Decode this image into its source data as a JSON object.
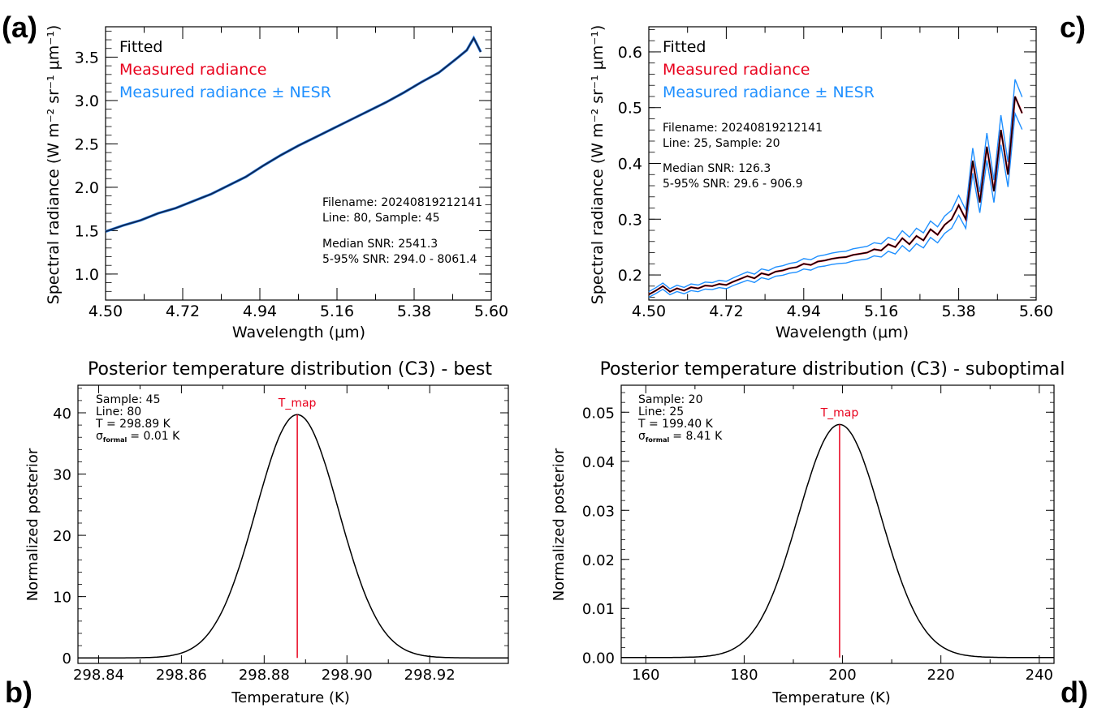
{
  "colors": {
    "fitted": "#000000",
    "measured": "#e8001c",
    "nesr": "#1e8fff",
    "tmap": "#e8001c",
    "axis": "#000000"
  },
  "chart_data": [
    {
      "panel": "(a)",
      "type": "line",
      "title": "",
      "xlabel": "Wavelength (μm)",
      "ylabel": "Spectral radiance (W m⁻² sr⁻¹ μm⁻¹)",
      "xlim": [
        4.5,
        5.6
      ],
      "ylim": [
        0.7,
        3.85
      ],
      "xticks": [
        4.5,
        4.72,
        4.94,
        5.16,
        5.38,
        5.6
      ],
      "xtick_labels": [
        "4.50",
        "4.72",
        "4.94",
        "5.16",
        "5.38",
        "5.60"
      ],
      "yticks": [
        1.0,
        1.5,
        2.0,
        2.5,
        3.0,
        3.5
      ],
      "ytick_labels": [
        "1.0",
        "1.5",
        "2.0",
        "2.5",
        "3.0",
        "3.5"
      ],
      "legend": [
        "Fitted",
        "Measured radiance",
        "Measured radiance ± NESR"
      ],
      "legend_position": "top-left",
      "annotation": {
        "filename": "Filename: 20240819212141",
        "line_sample": "Line:  80, Sample:  45",
        "median_snr": "Median SNR: 2541.3",
        "range_snr": "5-95% SNR:   294.0 -  8061.4"
      },
      "series": [
        {
          "name": "Fitted",
          "x": [
            4.5,
            4.55,
            4.6,
            4.65,
            4.7,
            4.75,
            4.8,
            4.85,
            4.9,
            4.95,
            5.0,
            5.05,
            5.1,
            5.15,
            5.2,
            5.25,
            5.3,
            5.35,
            5.4,
            5.45,
            5.5,
            5.53,
            5.55,
            5.57
          ],
          "y": [
            1.49,
            1.56,
            1.62,
            1.7,
            1.76,
            1.84,
            1.92,
            2.02,
            2.12,
            2.25,
            2.37,
            2.48,
            2.58,
            2.68,
            2.78,
            2.88,
            2.98,
            3.09,
            3.21,
            3.32,
            3.48,
            3.58,
            3.72,
            3.56
          ]
        }
      ]
    },
    {
      "panel": "c)",
      "type": "line",
      "title": "",
      "xlabel": "Wavelength (μm)",
      "ylabel": "Spectral radiance (W m⁻² sr⁻¹ μm⁻¹)",
      "xlim": [
        4.5,
        5.6
      ],
      "ylim": [
        0.155,
        0.645
      ],
      "xticks": [
        4.5,
        4.72,
        4.94,
        5.16,
        5.38,
        5.6
      ],
      "xtick_labels": [
        "4.50",
        "4.72",
        "4.94",
        "5.16",
        "5.38",
        "5.60"
      ],
      "yticks": [
        0.2,
        0.3,
        0.4,
        0.5,
        0.6
      ],
      "ytick_labels": [
        "0.2",
        "0.3",
        "0.4",
        "0.5",
        "0.6"
      ],
      "legend": [
        "Fitted",
        "Measured radiance",
        "Measured radiance ± NESR"
      ],
      "legend_position": "top-left",
      "annotation": {
        "filename": "Filename: 20240819212141",
        "line_sample": "Line:  25, Sample:  20",
        "median_snr": "Median SNR:  126.3",
        "range_snr": "5-95% SNR:   29.6 -   906.9"
      },
      "series": [
        {
          "name": "Fitted",
          "x": [
            4.5,
            4.52,
            4.54,
            4.56,
            4.58,
            4.6,
            4.62,
            4.64,
            4.66,
            4.68,
            4.7,
            4.72,
            4.74,
            4.76,
            4.78,
            4.8,
            4.82,
            4.84,
            4.86,
            4.88,
            4.9,
            4.92,
            4.94,
            4.96,
            4.98,
            5.0,
            5.02,
            5.04,
            5.06,
            5.08,
            5.1,
            5.12,
            5.14,
            5.16,
            5.18,
            5.2,
            5.22,
            5.24,
            5.26,
            5.28,
            5.3,
            5.32,
            5.34,
            5.36,
            5.38,
            5.4,
            5.42,
            5.44,
            5.46,
            5.48,
            5.5,
            5.52,
            5.54,
            5.56
          ],
          "y": [
            0.165,
            0.172,
            0.18,
            0.17,
            0.176,
            0.172,
            0.178,
            0.176,
            0.181,
            0.18,
            0.184,
            0.182,
            0.188,
            0.193,
            0.198,
            0.194,
            0.203,
            0.2,
            0.206,
            0.208,
            0.212,
            0.214,
            0.22,
            0.218,
            0.224,
            0.226,
            0.229,
            0.231,
            0.232,
            0.236,
            0.238,
            0.24,
            0.246,
            0.244,
            0.255,
            0.25,
            0.266,
            0.255,
            0.27,
            0.262,
            0.282,
            0.272,
            0.29,
            0.3,
            0.325,
            0.3,
            0.405,
            0.33,
            0.43,
            0.35,
            0.46,
            0.38,
            0.52,
            0.49
          ]
        }
      ]
    },
    {
      "panel": "b)",
      "type": "line",
      "title": "Posterior temperature distribution (C3) - best",
      "xlabel": "Temperature (K)",
      "ylabel": "Normalized posterior",
      "xlim": [
        298.835,
        298.939
      ],
      "ylim": [
        -0.9,
        44.5
      ],
      "xticks": [
        298.84,
        298.86,
        298.88,
        298.9,
        298.92
      ],
      "xtick_labels": [
        "298.84",
        "298.86",
        "298.88",
        "298.90",
        "298.92"
      ],
      "yticks": [
        0,
        10,
        20,
        30,
        40
      ],
      "ytick_labels": [
        "0",
        "10",
        "20",
        "30",
        "40"
      ],
      "marker_label": "T_map",
      "marker_x": 298.888,
      "gaussian": {
        "mean": 298.888,
        "sigma": 0.01,
        "peak": 39.7
      },
      "annotation": {
        "sample": "Sample: 45",
        "line": "Line: 80",
        "temperature": "T = 298.89 K",
        "sigma_symbol": "σ",
        "sigma_sub": "formal",
        "sigma_value": "=   0.01 K"
      }
    },
    {
      "panel": "d)",
      "type": "line",
      "title": "Posterior temperature distribution (C3) - suboptimal",
      "xlabel": "Temperature (K)",
      "ylabel": "Normalized posterior",
      "xlim": [
        155,
        243
      ],
      "ylim": [
        -0.0012,
        0.0555
      ],
      "xticks": [
        160,
        180,
        200,
        220,
        240
      ],
      "xtick_labels": [
        "160",
        "180",
        "200",
        "220",
        "240"
      ],
      "yticks": [
        0.0,
        0.01,
        0.02,
        0.03,
        0.04,
        0.05
      ],
      "ytick_labels": [
        "0.00",
        "0.01",
        "0.02",
        "0.03",
        "0.04",
        "0.05"
      ],
      "marker_label": "T_map",
      "marker_x": 199.4,
      "gaussian": {
        "mean": 199.4,
        "sigma": 8.41,
        "peak": 0.0475
      },
      "annotation": {
        "sample": "Sample: 20",
        "line": "Line: 25",
        "temperature": "T = 199.40 K",
        "sigma_symbol": "σ",
        "sigma_sub": "formal",
        "sigma_value": "=   8.41 K"
      }
    }
  ]
}
